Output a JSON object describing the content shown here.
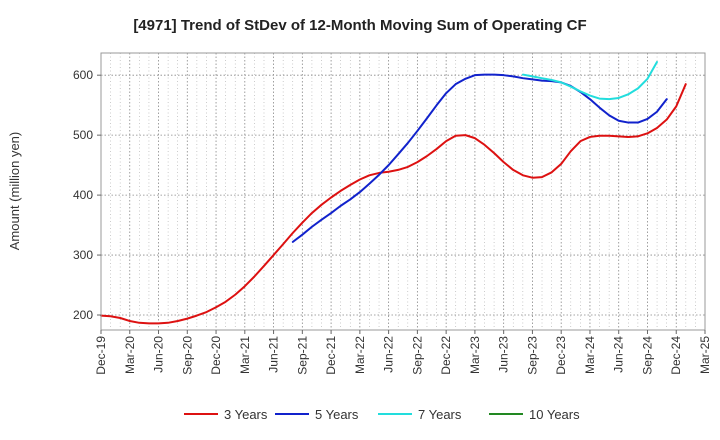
{
  "chart_data": {
    "type": "line",
    "title": "[4971]  Trend of StDev of 12-Month Moving Sum of Operating CF",
    "xlabel": "",
    "ylabel": "Amount (million yen)",
    "ylim": [
      175,
      637
    ],
    "yticks": [
      200,
      300,
      400,
      500,
      600
    ],
    "grid": true,
    "legend_position": "bottom",
    "categories": [
      "Dec-19",
      "Mar-20",
      "Jun-20",
      "Sep-20",
      "Dec-20",
      "Mar-21",
      "Jun-21",
      "Sep-21",
      "Dec-21",
      "Mar-22",
      "Jun-22",
      "Sep-22",
      "Dec-22",
      "Mar-23",
      "Jun-23",
      "Sep-23",
      "Dec-23",
      "Mar-24",
      "Jun-24",
      "Sep-24",
      "Dec-24",
      "Mar-25"
    ],
    "series": [
      {
        "name": "3 Years",
        "color": "#dd1111",
        "points": [
          [
            0,
            199
          ],
          [
            0.33,
            198
          ],
          [
            0.67,
            195
          ],
          [
            1,
            190
          ],
          [
            1.33,
            187
          ],
          [
            1.67,
            186
          ],
          [
            2,
            186
          ],
          [
            2.33,
            187
          ],
          [
            2.67,
            190
          ],
          [
            3,
            194
          ],
          [
            3.33,
            199
          ],
          [
            3.67,
            205
          ],
          [
            4,
            213
          ],
          [
            4.33,
            222
          ],
          [
            4.67,
            234
          ],
          [
            5,
            248
          ],
          [
            5.33,
            264
          ],
          [
            5.67,
            282
          ],
          [
            6,
            300
          ],
          [
            6.33,
            318
          ],
          [
            6.67,
            337
          ],
          [
            7,
            354
          ],
          [
            7.33,
            370
          ],
          [
            7.67,
            384
          ],
          [
            8,
            396
          ],
          [
            8.33,
            407
          ],
          [
            8.67,
            417
          ],
          [
            9,
            426
          ],
          [
            9.33,
            433
          ],
          [
            9.67,
            437
          ],
          [
            10,
            439
          ],
          [
            10.33,
            442
          ],
          [
            10.67,
            447
          ],
          [
            11,
            455
          ],
          [
            11.33,
            465
          ],
          [
            11.67,
            477
          ],
          [
            12,
            490
          ],
          [
            12.33,
            499
          ],
          [
            12.67,
            500
          ],
          [
            13,
            495
          ],
          [
            13.33,
            484
          ],
          [
            13.67,
            470
          ],
          [
            14,
            455
          ],
          [
            14.33,
            442
          ],
          [
            14.67,
            433
          ],
          [
            15,
            429
          ],
          [
            15.33,
            430
          ],
          [
            15.67,
            438
          ],
          [
            16,
            452
          ],
          [
            16.33,
            473
          ],
          [
            16.67,
            490
          ],
          [
            17,
            497
          ],
          [
            17.33,
            499
          ],
          [
            17.67,
            499
          ],
          [
            18,
            498
          ],
          [
            18.33,
            497
          ],
          [
            18.67,
            498
          ],
          [
            19,
            503
          ],
          [
            19.33,
            512
          ],
          [
            19.67,
            526
          ],
          [
            20,
            548
          ],
          [
            20.33,
            585
          ]
        ]
      },
      {
        "name": "5 Years",
        "color": "#1122cc",
        "points": [
          [
            6.67,
            322
          ],
          [
            7,
            334
          ],
          [
            7.33,
            347
          ],
          [
            7.67,
            359
          ],
          [
            8,
            370
          ],
          [
            8.33,
            382
          ],
          [
            8.67,
            393
          ],
          [
            9,
            405
          ],
          [
            9.33,
            419
          ],
          [
            9.67,
            434
          ],
          [
            10,
            450
          ],
          [
            10.33,
            468
          ],
          [
            10.67,
            487
          ],
          [
            11,
            507
          ],
          [
            11.33,
            528
          ],
          [
            11.67,
            550
          ],
          [
            12,
            570
          ],
          [
            12.33,
            585
          ],
          [
            12.67,
            594
          ],
          [
            13,
            600
          ],
          [
            13.33,
            601
          ],
          [
            13.67,
            601
          ],
          [
            14,
            600
          ],
          [
            14.33,
            598
          ],
          [
            14.67,
            595
          ],
          [
            15,
            593
          ],
          [
            15.33,
            591
          ],
          [
            15.67,
            590
          ],
          [
            16,
            588
          ],
          [
            16.33,
            582
          ],
          [
            16.67,
            572
          ],
          [
            17,
            560
          ],
          [
            17.33,
            546
          ],
          [
            17.67,
            533
          ],
          [
            18,
            524
          ],
          [
            18.33,
            521
          ],
          [
            18.67,
            521
          ],
          [
            19,
            527
          ],
          [
            19.33,
            539
          ],
          [
            19.67,
            560
          ]
        ]
      },
      {
        "name": "7 Years",
        "color": "#22dddd",
        "points": [
          [
            14.67,
            601
          ],
          [
            15,
            598
          ],
          [
            15.33,
            595
          ],
          [
            15.67,
            592
          ],
          [
            16,
            588
          ],
          [
            16.33,
            581
          ],
          [
            16.67,
            573
          ],
          [
            17,
            566
          ],
          [
            17.33,
            561
          ],
          [
            17.67,
            560
          ],
          [
            18,
            562
          ],
          [
            18.33,
            568
          ],
          [
            18.67,
            578
          ],
          [
            19,
            594
          ],
          [
            19.33,
            622
          ]
        ]
      },
      {
        "name": "10 Years",
        "color": "#228822",
        "points": []
      }
    ]
  }
}
